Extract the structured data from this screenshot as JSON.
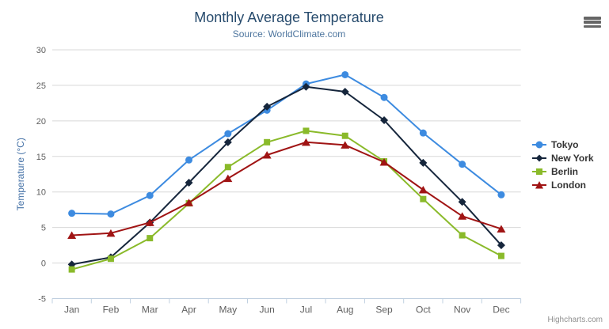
{
  "header": {
    "title": "Monthly Average Temperature",
    "subtitle": "Source: WorldClimate.com"
  },
  "credits": {
    "label": "Highcharts.com"
  },
  "chart_data": {
    "type": "line",
    "title": "Monthly Average Temperature",
    "subtitle": "Source: WorldClimate.com",
    "xlabel": "",
    "ylabel": "Temperature (°C)",
    "categories": [
      "Jan",
      "Feb",
      "Mar",
      "Apr",
      "May",
      "Jun",
      "Jul",
      "Aug",
      "Sep",
      "Oct",
      "Nov",
      "Dec"
    ],
    "ylim": [
      -5,
      30
    ],
    "yticks": [
      -5,
      0,
      5,
      10,
      15,
      20,
      25,
      30
    ],
    "grid": true,
    "legend_position": "right",
    "series": [
      {
        "name": "Tokyo",
        "color": "#3d8be0",
        "marker": "circle",
        "values": [
          7.0,
          6.9,
          9.5,
          14.5,
          18.2,
          21.5,
          25.2,
          26.5,
          23.3,
          18.3,
          13.9,
          9.6
        ]
      },
      {
        "name": "New York",
        "color": "#16263c",
        "marker": "diamond",
        "values": [
          -0.2,
          0.8,
          5.7,
          11.3,
          17.0,
          22.0,
          24.8,
          24.1,
          20.1,
          14.1,
          8.6,
          2.5
        ]
      },
      {
        "name": "Berlin",
        "color": "#8aba2a",
        "marker": "square",
        "values": [
          -0.9,
          0.6,
          3.5,
          8.4,
          13.5,
          17.0,
          18.6,
          17.9,
          14.3,
          9.0,
          3.9,
          1.0
        ]
      },
      {
        "name": "London",
        "color": "#a01414",
        "marker": "triangle",
        "values": [
          3.9,
          4.2,
          5.7,
          8.5,
          11.9,
          15.2,
          17.0,
          16.6,
          14.2,
          10.3,
          6.6,
          4.8
        ]
      }
    ]
  },
  "colors": {
    "title": "#274b6d",
    "subtitle": "#4d759e",
    "axis_label": "#606060",
    "axis_title": "#4572a7",
    "grid": "#d8d8d8",
    "axis_line": "#c0d0e0",
    "legend_text": "#333333",
    "credits": "#909090"
  }
}
